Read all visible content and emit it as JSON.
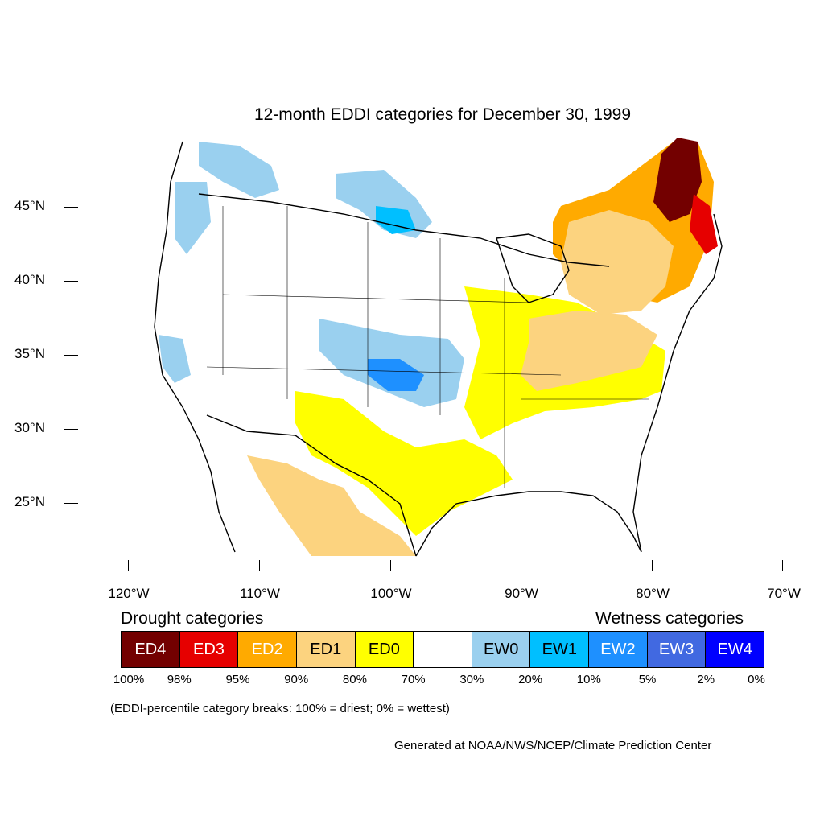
{
  "title": "12-month EDDI categories for December 30, 1999",
  "lat_labels": [
    "45°N",
    "40°N",
    "35°N",
    "30°N",
    "25°N"
  ],
  "lon_labels": [
    "120°W",
    "110°W",
    "100°W",
    "90°W",
    "80°W",
    "70°W"
  ],
  "legend": {
    "drought_heading": "Drought categories",
    "wetness_heading": "Wetness categories",
    "categories": [
      {
        "label": "ED4",
        "color": "#730000",
        "text_color": "#ffffff"
      },
      {
        "label": "ED3",
        "color": "#e60000",
        "text_color": "#ffffff"
      },
      {
        "label": "ED2",
        "color": "#ffaa00",
        "text_color": "#ffffff"
      },
      {
        "label": "ED1",
        "color": "#fcd37f",
        "text_color": "#000000"
      },
      {
        "label": "ED0",
        "color": "#ffff00",
        "text_color": "#000000"
      },
      {
        "label": "",
        "color": "#ffffff",
        "text_color": "#000000"
      },
      {
        "label": "EW0",
        "color": "#9ad0ef",
        "text_color": "#000000"
      },
      {
        "label": "EW1",
        "color": "#00bfff",
        "text_color": "#000000"
      },
      {
        "label": "EW2",
        "color": "#1e90ff",
        "text_color": "#ffffff"
      },
      {
        "label": "EW3",
        "color": "#4169e1",
        "text_color": "#ffffff"
      },
      {
        "label": "EW4",
        "color": "#0000ff",
        "text_color": "#ffffff"
      }
    ],
    "breaks": [
      "100%",
      "98%",
      "95%",
      "90%",
      "80%",
      "70%",
      "30%",
      "20%",
      "10%",
      "5%",
      "2%",
      "0%"
    ]
  },
  "note": "(EDDI-percentile category breaks: 100% = driest; 0% = wettest)",
  "credit": "Generated at NOAA/NWS/NCEP/Climate Prediction Center"
}
